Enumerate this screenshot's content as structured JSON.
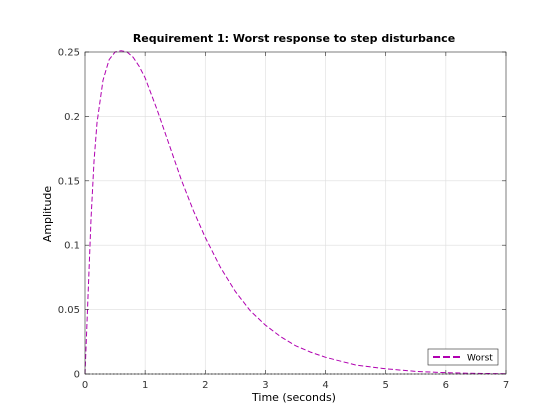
{
  "chart_data": {
    "type": "line",
    "title": "Requirement 1: Worst response to step disturbance",
    "xlabel": "Time (seconds)",
    "ylabel": "Amplitude",
    "xlim": [
      0,
      7
    ],
    "ylim": [
      0,
      0.25
    ],
    "x_ticks": [
      0,
      1,
      2,
      3,
      4,
      5,
      6,
      7
    ],
    "y_ticks": [
      0,
      0.05,
      0.1,
      0.15,
      0.2,
      0.25
    ],
    "x_tick_labels": [
      "0",
      "1",
      "2",
      "3",
      "4",
      "5",
      "6",
      "7"
    ],
    "y_tick_labels": [
      "0",
      "0.05",
      "0.1",
      "0.15",
      "0.2",
      "0.25"
    ],
    "grid": true,
    "legend_position": "bottom-right",
    "series": [
      {
        "name": "Worst",
        "color": "#b000b0",
        "style": "dashed",
        "x": [
          0,
          0.05,
          0.1,
          0.15,
          0.2,
          0.3,
          0.4,
          0.5,
          0.6,
          0.7,
          0.8,
          0.9,
          1.0,
          1.2,
          1.4,
          1.6,
          1.8,
          2.0,
          2.25,
          2.5,
          2.75,
          3.0,
          3.25,
          3.5,
          3.75,
          4.0,
          4.5,
          5.0,
          5.5,
          6.0,
          6.5,
          7.0
        ],
        "y": [
          0,
          0.06,
          0.12,
          0.165,
          0.195,
          0.228,
          0.244,
          0.25,
          0.251,
          0.25,
          0.246,
          0.239,
          0.23,
          0.205,
          0.178,
          0.151,
          0.127,
          0.106,
          0.083,
          0.064,
          0.049,
          0.038,
          0.029,
          0.022,
          0.017,
          0.013,
          0.007,
          0.004,
          0.002,
          0.001,
          0.0005,
          0.0002
        ]
      },
      {
        "color": "#000000",
        "style": "dotted",
        "x": [
          0,
          7
        ],
        "y": [
          0,
          0
        ]
      }
    ]
  }
}
